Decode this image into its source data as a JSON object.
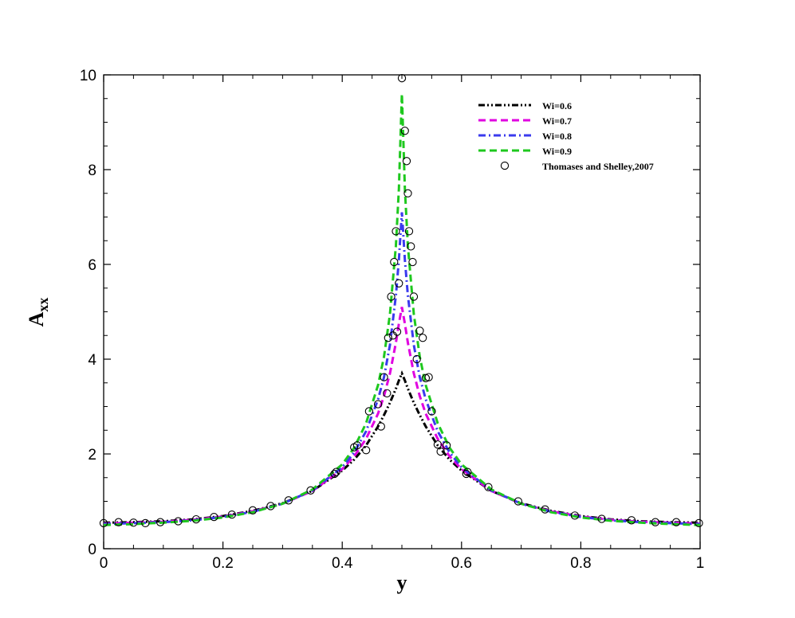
{
  "chart_data": {
    "type": "line",
    "title": "",
    "xlabel": "y",
    "ylabel_main": "A",
    "ylabel_sub": "xx",
    "xlim": [
      0,
      1
    ],
    "ylim": [
      0,
      10
    ],
    "x_ticks": [
      0,
      0.2,
      0.4,
      0.6,
      0.8,
      1
    ],
    "x_tick_labels": [
      "0",
      "0.2",
      "0.4",
      "0.6",
      "0.8",
      "1"
    ],
    "y_ticks": [
      0,
      2,
      4,
      6,
      8,
      10
    ],
    "y_tick_labels": [
      "0",
      "2",
      "4",
      "6",
      "8",
      "10"
    ],
    "grid": false,
    "legend_position": "top-right",
    "series": [
      {
        "name": "Wi=0.6",
        "style": "dash-dot-dot",
        "color": "#000000",
        "x": [
          0,
          0.05,
          0.1,
          0.15,
          0.2,
          0.25,
          0.3,
          0.35,
          0.4,
          0.42,
          0.44,
          0.46,
          0.47,
          0.48,
          0.49,
          0.495,
          0.5,
          0.505,
          0.51,
          0.52,
          0.53,
          0.54,
          0.56,
          0.58,
          0.6,
          0.65,
          0.7,
          0.75,
          0.8,
          0.85,
          0.9,
          0.95,
          1.0
        ],
        "y": [
          0.55,
          0.56,
          0.58,
          0.62,
          0.69,
          0.8,
          0.96,
          1.22,
          1.65,
          1.88,
          2.18,
          2.58,
          2.82,
          3.08,
          3.38,
          3.55,
          3.7,
          3.55,
          3.38,
          3.08,
          2.82,
          2.58,
          2.18,
          1.88,
          1.65,
          1.22,
          0.96,
          0.8,
          0.69,
          0.62,
          0.58,
          0.56,
          0.55
        ]
      },
      {
        "name": "Wi=0.7",
        "style": "dash",
        "color": "#e000e0",
        "x": [
          0,
          0.05,
          0.1,
          0.15,
          0.2,
          0.25,
          0.3,
          0.35,
          0.4,
          0.42,
          0.44,
          0.46,
          0.47,
          0.48,
          0.49,
          0.495,
          0.5,
          0.505,
          0.51,
          0.52,
          0.53,
          0.54,
          0.56,
          0.58,
          0.6,
          0.65,
          0.7,
          0.75,
          0.8,
          0.85,
          0.9,
          0.95,
          1.0
        ],
        "y": [
          0.53,
          0.55,
          0.57,
          0.61,
          0.68,
          0.79,
          0.95,
          1.22,
          1.68,
          1.95,
          2.32,
          2.85,
          3.22,
          3.7,
          4.35,
          4.75,
          5.1,
          4.75,
          4.35,
          3.7,
          3.22,
          2.85,
          2.32,
          1.95,
          1.68,
          1.22,
          0.95,
          0.79,
          0.68,
          0.61,
          0.57,
          0.55,
          0.53
        ]
      },
      {
        "name": "Wi=0.8",
        "style": "dash-dot",
        "color": "#3a3aee",
        "x": [
          0,
          0.05,
          0.1,
          0.15,
          0.2,
          0.25,
          0.3,
          0.35,
          0.4,
          0.42,
          0.44,
          0.46,
          0.47,
          0.48,
          0.49,
          0.495,
          0.5,
          0.505,
          0.51,
          0.52,
          0.53,
          0.54,
          0.56,
          0.58,
          0.6,
          0.65,
          0.7,
          0.75,
          0.8,
          0.85,
          0.9,
          0.95,
          1.0
        ],
        "y": [
          0.52,
          0.54,
          0.56,
          0.6,
          0.67,
          0.78,
          0.95,
          1.23,
          1.72,
          2.03,
          2.48,
          3.15,
          3.62,
          4.3,
          5.35,
          6.1,
          7.1,
          6.1,
          5.35,
          4.3,
          3.62,
          3.15,
          2.48,
          2.03,
          1.72,
          1.23,
          0.95,
          0.78,
          0.67,
          0.6,
          0.56,
          0.54,
          0.52
        ]
      },
      {
        "name": "Wi=0.9",
        "style": "dash",
        "color": "#1ec81e",
        "x": [
          0,
          0.05,
          0.1,
          0.15,
          0.2,
          0.25,
          0.3,
          0.35,
          0.4,
          0.42,
          0.44,
          0.46,
          0.47,
          0.48,
          0.49,
          0.495,
          0.5,
          0.505,
          0.51,
          0.52,
          0.53,
          0.54,
          0.56,
          0.58,
          0.6,
          0.65,
          0.7,
          0.75,
          0.8,
          0.85,
          0.9,
          0.95,
          1.0
        ],
        "y": [
          0.5,
          0.52,
          0.55,
          0.59,
          0.66,
          0.77,
          0.95,
          1.25,
          1.78,
          2.13,
          2.65,
          3.45,
          4.05,
          4.95,
          6.4,
          7.6,
          9.6,
          7.6,
          6.4,
          4.95,
          4.05,
          3.45,
          2.65,
          2.13,
          1.78,
          1.25,
          0.95,
          0.77,
          0.66,
          0.59,
          0.55,
          0.52,
          0.5
        ]
      },
      {
        "name": "Thomases and Shelley,2007",
        "style": "circle-marker",
        "color": "#000000",
        "x": [
          0.0,
          0.025,
          0.05,
          0.07,
          0.095,
          0.125,
          0.155,
          0.185,
          0.215,
          0.25,
          0.28,
          0.31,
          0.347,
          0.387,
          0.39,
          0.42,
          0.425,
          0.44,
          0.445,
          0.46,
          0.465,
          0.47,
          0.475,
          0.477,
          0.482,
          0.485,
          0.487,
          0.49,
          0.492,
          0.495,
          0.5,
          0.505,
          0.508,
          0.51,
          0.512,
          0.515,
          0.518,
          0.52,
          0.525,
          0.53,
          0.535,
          0.54,
          0.545,
          0.55,
          0.56,
          0.565,
          0.575,
          0.608,
          0.61,
          0.645,
          0.695,
          0.74,
          0.79,
          0.835,
          0.885,
          0.925,
          0.96,
          0.998
        ],
        "y": [
          0.54,
          0.56,
          0.55,
          0.54,
          0.56,
          0.58,
          0.62,
          0.67,
          0.72,
          0.81,
          0.9,
          1.02,
          1.23,
          1.58,
          1.62,
          2.14,
          2.18,
          2.08,
          2.9,
          3.05,
          2.58,
          3.62,
          3.28,
          4.45,
          5.32,
          4.5,
          6.05,
          6.7,
          4.58,
          5.6,
          9.93,
          8.82,
          8.18,
          7.5,
          6.7,
          6.38,
          6.05,
          5.32,
          4.0,
          4.6,
          4.45,
          3.6,
          3.62,
          2.9,
          2.2,
          2.05,
          2.18,
          1.58,
          1.62,
          1.3,
          1.0,
          0.83,
          0.7,
          0.63,
          0.6,
          0.56,
          0.56,
          0.54
        ]
      }
    ]
  }
}
